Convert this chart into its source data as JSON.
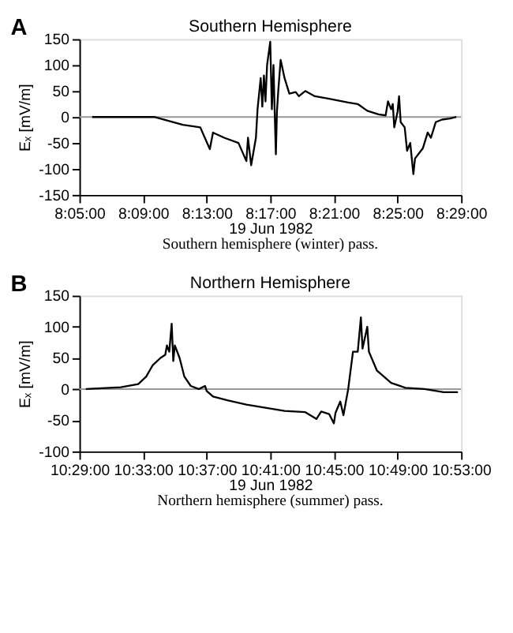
{
  "chart_data": [
    {
      "type": "line",
      "title": "Southern Hemisphere",
      "xlabel": "19 Jun 1982",
      "ylabel": "Eₓ [mV/m]",
      "annotations": [
        "A",
        "Southern hemisphere (winter) pass."
      ],
      "xlim": [
        8.0833,
        8.4833
      ],
      "xticks": [
        {
          "value": 8.0833,
          "label": "8:05:00"
        },
        {
          "value": 8.15,
          "label": "8:09:00"
        },
        {
          "value": 8.2167,
          "label": "8:13:00"
        },
        {
          "value": 8.2833,
          "label": "8:17:00"
        },
        {
          "value": 8.35,
          "label": "8:21:00"
        },
        {
          "value": 8.4167,
          "label": "8:25:00"
        },
        {
          "value": 8.4833,
          "label": "8:29:00"
        }
      ],
      "ylim": [
        -150,
        150
      ],
      "yticks": [
        -150,
        -100,
        -50,
        0,
        50,
        100,
        150
      ],
      "grid": false,
      "ref_lines": [
        {
          "axis": "y",
          "value": 0,
          "color": "#999999"
        }
      ],
      "series": [
        {
          "color": "#000000",
          "x": [
            8.0967,
            8.1617,
            8.1917,
            8.21,
            8.22,
            8.2233,
            8.235,
            8.25,
            8.2583,
            8.26,
            8.2633,
            8.2683,
            8.27,
            8.2733,
            8.275,
            8.2767,
            8.2783,
            8.28,
            8.2833,
            8.285,
            8.2867,
            8.2878,
            8.2892,
            8.2903,
            8.2917,
            8.2942,
            8.2983,
            8.3033,
            8.31,
            8.3133,
            8.32,
            8.33,
            8.345,
            8.365,
            8.375,
            8.385,
            8.3967,
            8.4042,
            8.4067,
            8.41,
            8.4117,
            8.4133,
            8.4167,
            8.4183,
            8.42,
            8.4242,
            8.4267,
            8.43,
            8.4333,
            8.435,
            8.4433,
            8.4483,
            8.4517,
            8.4567,
            8.4633,
            8.4717,
            8.4783
          ],
          "values": [
            0,
            0,
            -15,
            -20,
            -62,
            -30,
            -40,
            -50,
            -85,
            -40,
            -93,
            -40,
            15,
            75,
            20,
            80,
            30,
            100,
            145,
            15,
            100,
            20,
            -72,
            10,
            50,
            110,
            75,
            45,
            48,
            40,
            50,
            40,
            35,
            28,
            25,
            12,
            5,
            3,
            30,
            15,
            25,
            -20,
            10,
            40,
            -10,
            -20,
            -65,
            -50,
            -110,
            -80,
            -60,
            -30,
            -40,
            -10,
            -5,
            -3,
            0
          ]
        }
      ]
    },
    {
      "type": "line",
      "title": "Northern Hemisphere",
      "xlabel": "19 Jun 1982",
      "ylabel": "Eₓ [mV/m]",
      "annotations": [
        "B",
        "Northern hemisphere (summer) pass."
      ],
      "xlim": [
        10.4833,
        10.8833
      ],
      "xticks": [
        {
          "value": 10.4833,
          "label": "10:29:00"
        },
        {
          "value": 10.55,
          "label": "10:33:00"
        },
        {
          "value": 10.6167,
          "label": "10:37:00"
        },
        {
          "value": 10.6833,
          "label": "10:41:00"
        },
        {
          "value": 10.75,
          "label": "10:45:00"
        },
        {
          "value": 10.8167,
          "label": "10:49:00"
        },
        {
          "value": 10.8833,
          "label": "10:53:00"
        }
      ],
      "ylim": [
        -100,
        150
      ],
      "yticks": [
        -100,
        -50,
        0,
        50,
        100,
        150
      ],
      "grid": false,
      "ref_lines": [
        {
          "axis": "y",
          "value": 0,
          "color": "#999999"
        }
      ],
      "series": [
        {
          "color": "#000000",
          "x": [
            10.49,
            10.5267,
            10.545,
            10.5533,
            10.56,
            10.5683,
            10.5733,
            10.575,
            10.5775,
            10.58,
            10.5817,
            10.5833,
            10.5883,
            10.5933,
            10.6,
            10.6083,
            10.615,
            10.6167,
            10.6233,
            10.6383,
            10.6583,
            10.6783,
            10.6983,
            10.72,
            10.7317,
            10.7367,
            10.745,
            10.75,
            10.7517,
            10.7567,
            10.76,
            10.765,
            10.77,
            10.775,
            10.7783,
            10.78,
            10.785,
            10.7867,
            10.795,
            10.81,
            10.825,
            10.845,
            10.865,
            10.88
          ],
          "values": [
            0,
            3,
            8,
            20,
            38,
            50,
            55,
            70,
            60,
            105,
            45,
            70,
            50,
            20,
            5,
            0,
            5,
            -3,
            -12,
            -18,
            -25,
            -30,
            -35,
            -37,
            -48,
            -36,
            -40,
            -55,
            -38,
            -20,
            -42,
            0,
            60,
            60,
            115,
            65,
            100,
            60,
            30,
            10,
            2,
            0,
            -5,
            -5
          ]
        }
      ]
    }
  ]
}
